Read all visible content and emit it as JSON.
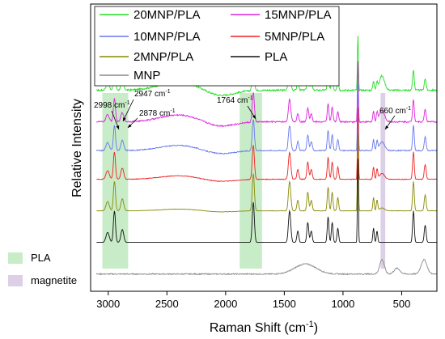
{
  "chart_data": {
    "type": "line",
    "xlabel": "Raman Shift (cm",
    "xlabel_sup": "-1",
    "xlabel_end": ")",
    "ylabel": "Relative Intensity",
    "x_axis_reversed": true,
    "xlim": [
      3150,
      200
    ],
    "x_ticks": [
      "3000",
      "2500",
      "2000",
      "1500",
      "1000",
      "500"
    ],
    "y_ticks_shown": false,
    "legend": {
      "placement": "top",
      "entries": [
        {
          "name": "20MNP/PLA",
          "color": "#22dd22"
        },
        {
          "name": "15MNP/PLA",
          "color": "#dd22dd"
        },
        {
          "name": "10MNP/PLA",
          "color": "#6677ee"
        },
        {
          "name": "5MNP/PLA",
          "color": "#ee2222"
        },
        {
          "name": "2MNP/PLA",
          "color": "#888800"
        },
        {
          "name": "PLA",
          "color": "#111111"
        },
        {
          "name": "MNP",
          "color": "#888888"
        }
      ]
    },
    "highlight_bands": [
      {
        "name": "PLA",
        "color": "#c8ecc8",
        "x_range": [
          3050,
          2830
        ]
      },
      {
        "name": "PLA",
        "color": "#c8ecc8",
        "x_range": [
          1880,
          1690
        ]
      },
      {
        "name": "magnetite",
        "color": "#dcd0e6",
        "x_range": [
          680,
          640
        ]
      }
    ],
    "side_legend": [
      {
        "name": "PLA",
        "color": "#c8ecc8"
      },
      {
        "name": "magnetite",
        "color": "#dcd0e6"
      }
    ],
    "annotations": [
      {
        "label": "2998 cm",
        "sup": "-1",
        "x": 2998
      },
      {
        "label": "2947 cm",
        "sup": "-1",
        "x": 2947
      },
      {
        "label": "2878 cm",
        "sup": "-1",
        "x": 2878
      },
      {
        "label": "1764 cm",
        "sup": "-1",
        "x": 1764
      },
      {
        "label": "660 cm",
        "sup": "-1",
        "x": 660
      }
    ],
    "series": [
      {
        "name": "20MNP/PLA",
        "baseline": 0.7
      },
      {
        "name": "15MNP/PLA",
        "baseline": 0.59
      },
      {
        "name": "10MNP/PLA",
        "baseline": 0.49
      },
      {
        "name": "5MNP/PLA",
        "baseline": 0.39
      },
      {
        "name": "2MNP/PLA",
        "baseline": 0.28
      },
      {
        "name": "PLA",
        "baseline": 0.17
      },
      {
        "name": "MNP",
        "baseline": 0.06
      }
    ],
    "pla_peaks": [
      {
        "x": 3005,
        "h": 0.035,
        "w": 14
      },
      {
        "x": 2947,
        "h": 0.11,
        "w": 9
      },
      {
        "x": 2880,
        "h": 0.045,
        "w": 12
      },
      {
        "x": 1764,
        "h": 0.14,
        "w": 9
      },
      {
        "x": 1455,
        "h": 0.11,
        "w": 10
      },
      {
        "x": 1385,
        "h": 0.04,
        "w": 8
      },
      {
        "x": 1300,
        "h": 0.07,
        "w": 8
      },
      {
        "x": 1270,
        "h": 0.04,
        "w": 8
      },
      {
        "x": 1127,
        "h": 0.09,
        "w": 7
      },
      {
        "x": 1092,
        "h": 0.07,
        "w": 7
      },
      {
        "x": 1044,
        "h": 0.05,
        "w": 7
      },
      {
        "x": 873,
        "h": 0.3,
        "w": 4
      },
      {
        "x": 740,
        "h": 0.05,
        "w": 6
      },
      {
        "x": 710,
        "h": 0.04,
        "w": 6
      },
      {
        "x": 400,
        "h": 0.11,
        "w": 7
      },
      {
        "x": 300,
        "h": 0.06,
        "w": 8
      }
    ],
    "mnp_features": [
      {
        "x": 1320,
        "h": 0.035,
        "w": 90
      },
      {
        "x": 668,
        "h": 0.05,
        "w": 20
      },
      {
        "x": 540,
        "h": 0.02,
        "w": 25
      },
      {
        "x": 310,
        "h": 0.05,
        "w": 25
      }
    ]
  }
}
